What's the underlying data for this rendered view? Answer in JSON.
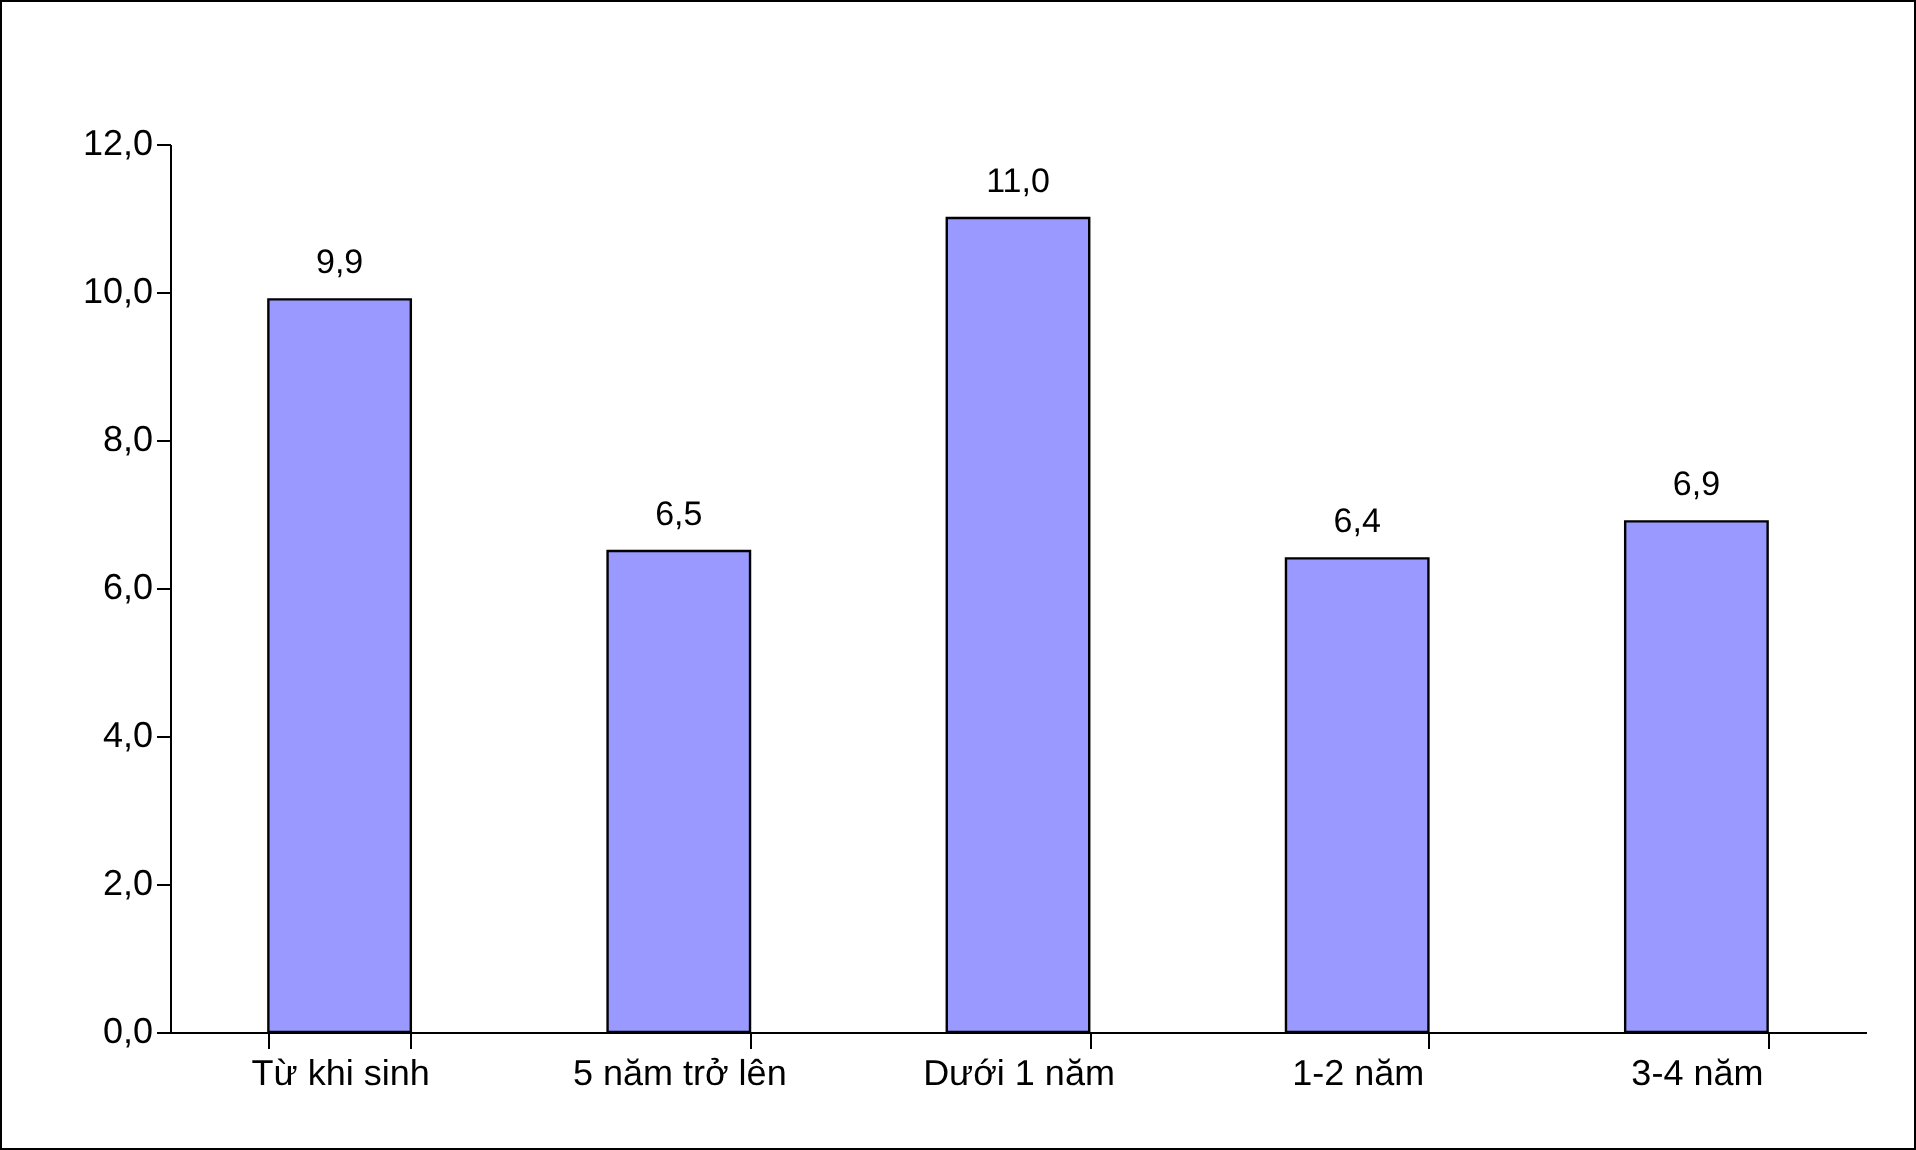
{
  "chart_data": {
    "type": "bar",
    "categories": [
      "Từ khi sinh",
      "5 năm trở lên",
      "Dưới 1 năm",
      "1-2 năm",
      "3-4 năm"
    ],
    "values": [
      9.9,
      6.5,
      11.0,
      6.4,
      6.9
    ],
    "value_labels": [
      "9,9",
      "6,5",
      "11,0",
      "6,4",
      "6,9"
    ],
    "color": "#9999ff",
    "ylim": [
      0,
      12
    ],
    "yticks": [
      {
        "value": 0,
        "label": "0,0"
      },
      {
        "value": 2,
        "label": "2,0"
      },
      {
        "value": 4,
        "label": "4,0"
      },
      {
        "value": 6,
        "label": "6,0"
      },
      {
        "value": 8,
        "label": "8,0"
      },
      {
        "value": 10,
        "label": "10,0"
      },
      {
        "value": 12,
        "label": "12,0"
      }
    ],
    "grid": false
  }
}
